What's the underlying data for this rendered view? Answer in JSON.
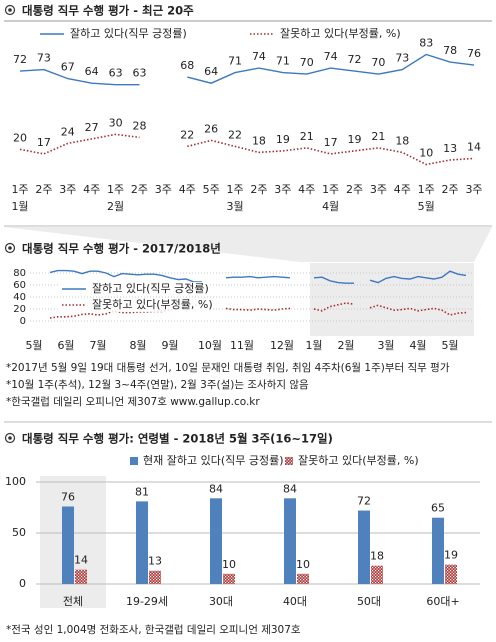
{
  "chart_data": [
    {
      "type": "line",
      "title": "대통령 직무 수행 평가 - 최근 20주",
      "data_labels": true,
      "categories": [
        "1주",
        "2주",
        "3주",
        "4주",
        "1주",
        "2주",
        "3주",
        "4주",
        "5주",
        "1주",
        "2주",
        "3주",
        "4주",
        "1주",
        "2주",
        "3주",
        "4주",
        "1주",
        "2주",
        "3주"
      ],
      "months": [
        "1월",
        null,
        null,
        null,
        "2월",
        null,
        null,
        null,
        null,
        "3월",
        null,
        null,
        null,
        "4월",
        null,
        null,
        null,
        "5월",
        null,
        null
      ],
      "ylim": [
        5,
        90
      ],
      "series": [
        {
          "name": "잘하고 있다(직무 긍정률)",
          "color": "#3d78c0",
          "dash": false,
          "values": [
            72,
            73,
            67,
            64,
            63,
            63,
            null,
            68,
            64,
            71,
            74,
            71,
            70,
            74,
            72,
            70,
            73,
            83,
            78,
            76
          ]
        },
        {
          "name": "잘못하고 있다(부정률, %)",
          "color": "#a52a2a",
          "dash": true,
          "values": [
            20,
            17,
            24,
            27,
            30,
            28,
            null,
            22,
            26,
            22,
            18,
            19,
            21,
            17,
            19,
            21,
            18,
            10,
            13,
            14
          ]
        }
      ]
    },
    {
      "type": "line",
      "title": "대통령 직무 수행 평가 - 2017/2018년",
      "data_labels": false,
      "categories": [
        "5월",
        null,
        null,
        null,
        "6월",
        null,
        null,
        null,
        "7월",
        null,
        null,
        null,
        null,
        "8월",
        null,
        null,
        null,
        "9월",
        null,
        null,
        null,
        null,
        "10월",
        null,
        null,
        null,
        "11월",
        null,
        null,
        null,
        null,
        "12월",
        null,
        null,
        null,
        "1월",
        null,
        null,
        null,
        "2월",
        null,
        null,
        null,
        null,
        "3월",
        null,
        null,
        null,
        "4월",
        null,
        null,
        null,
        "5월",
        null,
        null
      ],
      "ylim": [
        0,
        80
      ],
      "yticks": [
        0,
        20,
        40,
        60,
        80
      ],
      "grid": true,
      "series": [
        {
          "name": "잘하고 있다(직무 긍정률)",
          "color": "#3d78c0",
          "dash": false,
          "values": [
            null,
            null,
            81,
            84,
            84,
            83,
            79,
            83,
            83,
            80,
            74,
            79,
            78,
            77,
            78,
            78,
            76,
            72,
            69,
            70,
            65,
            65,
            null,
            null,
            72,
            73,
            73,
            74,
            72,
            73,
            74,
            73,
            72,
            null,
            null,
            72,
            73,
            67,
            64,
            63,
            63,
            null,
            68,
            64,
            71,
            74,
            71,
            70,
            74,
            72,
            70,
            73,
            83,
            78,
            76
          ]
        },
        {
          "name": "잘못하고 있다(부정률, %)",
          "color": "#a52a2a",
          "dash": true,
          "values": [
            null,
            null,
            5,
            7,
            7,
            8,
            11,
            12,
            10,
            12,
            17,
            14,
            14,
            15,
            15,
            16,
            16,
            19,
            21,
            23,
            26,
            28,
            null,
            null,
            21,
            19,
            19,
            18,
            20,
            19,
            18,
            20,
            21,
            null,
            null,
            20,
            17,
            24,
            27,
            30,
            28,
            null,
            22,
            26,
            22,
            18,
            19,
            21,
            17,
            19,
            21,
            18,
            10,
            13,
            14
          ]
        }
      ],
      "notes": [
        "*2017년 5월 9일 19대 대통령 선거, 10일 문재인 대통령 취임, 취임 4주차(6월 1주)부터 직무 평가",
        "*10월 1주(추석), 12월 3~4주(연말), 2월 3주(설)는 조사하지 않음",
        "*한국갤럽 데일리 오피니언 제307호 www.gallup.co.kr"
      ]
    },
    {
      "type": "bar",
      "title": "대통령 직무 수행 평가: 연령별 - 2018년 5월 3주(16~17일)",
      "categories": [
        "전체",
        "19-29세",
        "30대",
        "40대",
        "50대",
        "60대+"
      ],
      "ylim": [
        0,
        100
      ],
      "yticks": [
        0,
        50,
        100
      ],
      "grid": true,
      "series": [
        {
          "name": "현재 잘하고 있다(직무 긍정률)",
          "color": "#4f81bd",
          "hatch": false,
          "values": [
            76,
            81,
            84,
            84,
            72,
            65
          ]
        },
        {
          "name": "잘못하고 있다(부정률, %)",
          "color": "#b03a3a",
          "hatch": true,
          "values": [
            14,
            13,
            10,
            10,
            18,
            19
          ]
        }
      ],
      "notes": [
        "*전국 성인 1,004명 전화조사, 한국갤럽 데일리 오피니언 제307호"
      ]
    }
  ]
}
